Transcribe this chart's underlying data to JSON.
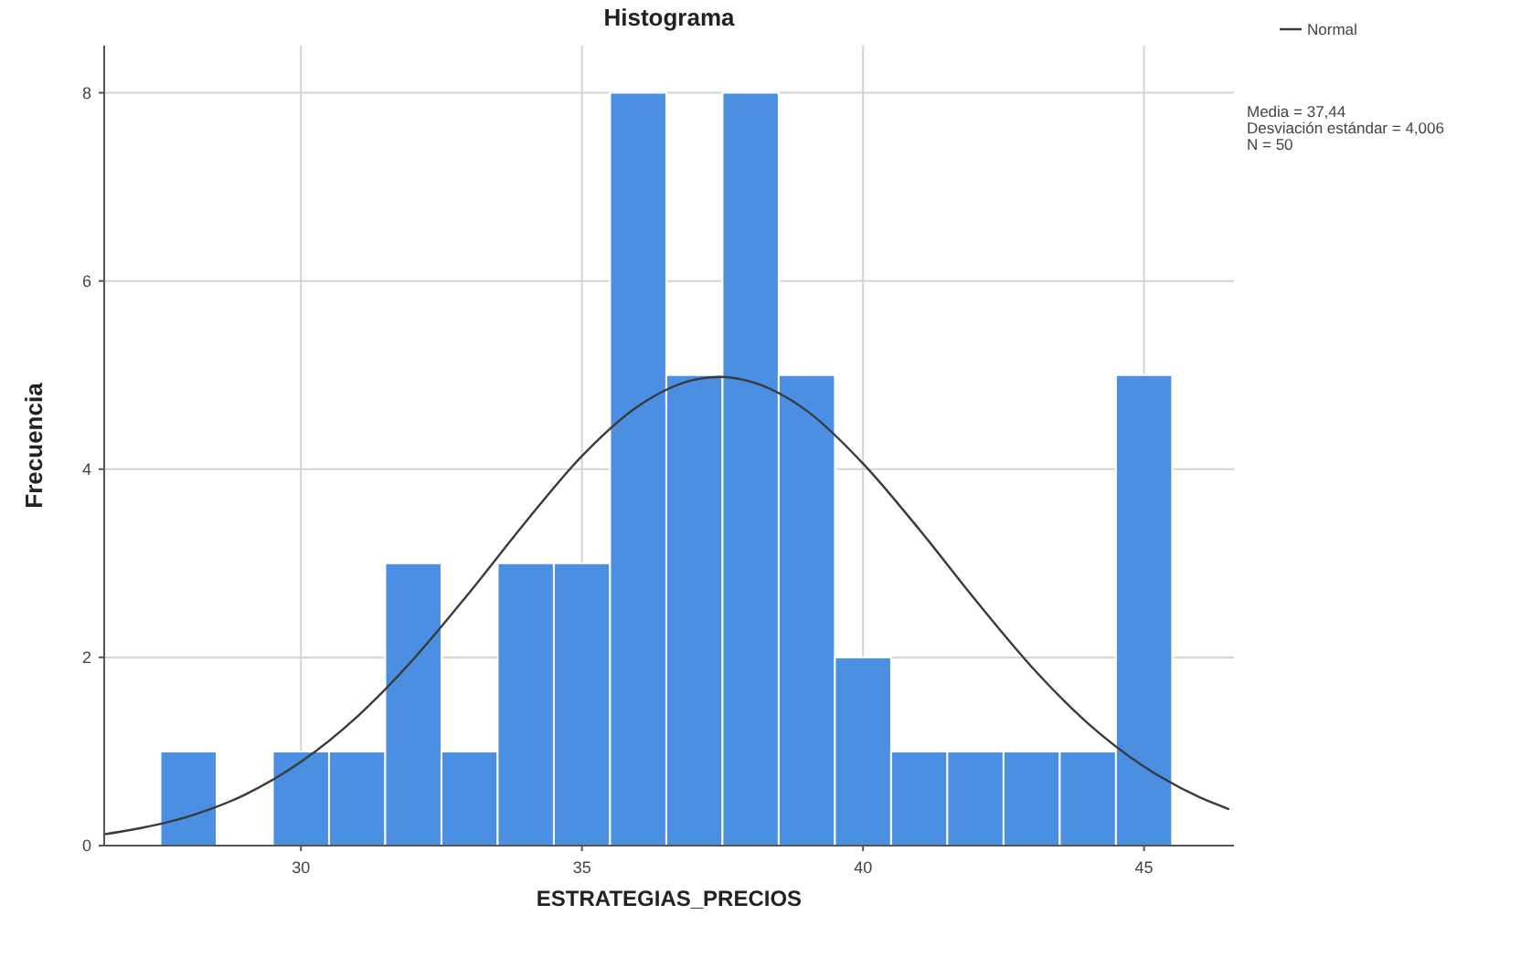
{
  "chart_data": {
    "type": "histogram",
    "title": "Histograma",
    "xlabel": "ESTRATEGIAS_PRECIOS",
    "ylabel": "Frecuencia",
    "bins": [
      27.5,
      28.5,
      29.5,
      30.5,
      31.5,
      32.5,
      33.5,
      34.5,
      35.5,
      36.5,
      37.5,
      38.5,
      39.5,
      40.5,
      41.5,
      42.5,
      43.5,
      44.5,
      45.5
    ],
    "values": [
      1,
      0,
      1,
      1,
      3,
      1,
      3,
      3,
      8,
      5,
      8,
      5,
      2,
      1,
      1,
      1,
      1,
      5
    ],
    "color": "#4b8fe2",
    "series": [
      {
        "name": "Normal",
        "type": "line",
        "color": "#3a3a3a",
        "x": [
          26.5,
          27,
          28,
          29,
          30,
          31,
          32,
          33,
          34,
          35,
          36,
          37,
          37.44,
          38,
          39,
          40,
          41,
          42,
          43,
          44,
          45,
          46,
          46.5
        ],
        "values": [
          0.12,
          0.17,
          0.31,
          0.54,
          0.89,
          1.37,
          1.98,
          2.69,
          3.44,
          4.14,
          4.67,
          4.95,
          4.98,
          4.93,
          4.62,
          4.06,
          3.36,
          2.61,
          1.9,
          1.3,
          0.84,
          0.51,
          0.39
        ]
      }
    ],
    "xlim": [
      26.5,
      46.6
    ],
    "xticks": [
      30,
      35,
      40,
      45
    ],
    "ylim": [
      0,
      8.5
    ],
    "yticks": [
      0,
      2,
      4,
      6,
      8
    ],
    "grid": true,
    "legend": "top right",
    "annotations": [
      "Media = 37,44",
      "Desviación estándar = 4,006",
      "N = 50"
    ]
  }
}
